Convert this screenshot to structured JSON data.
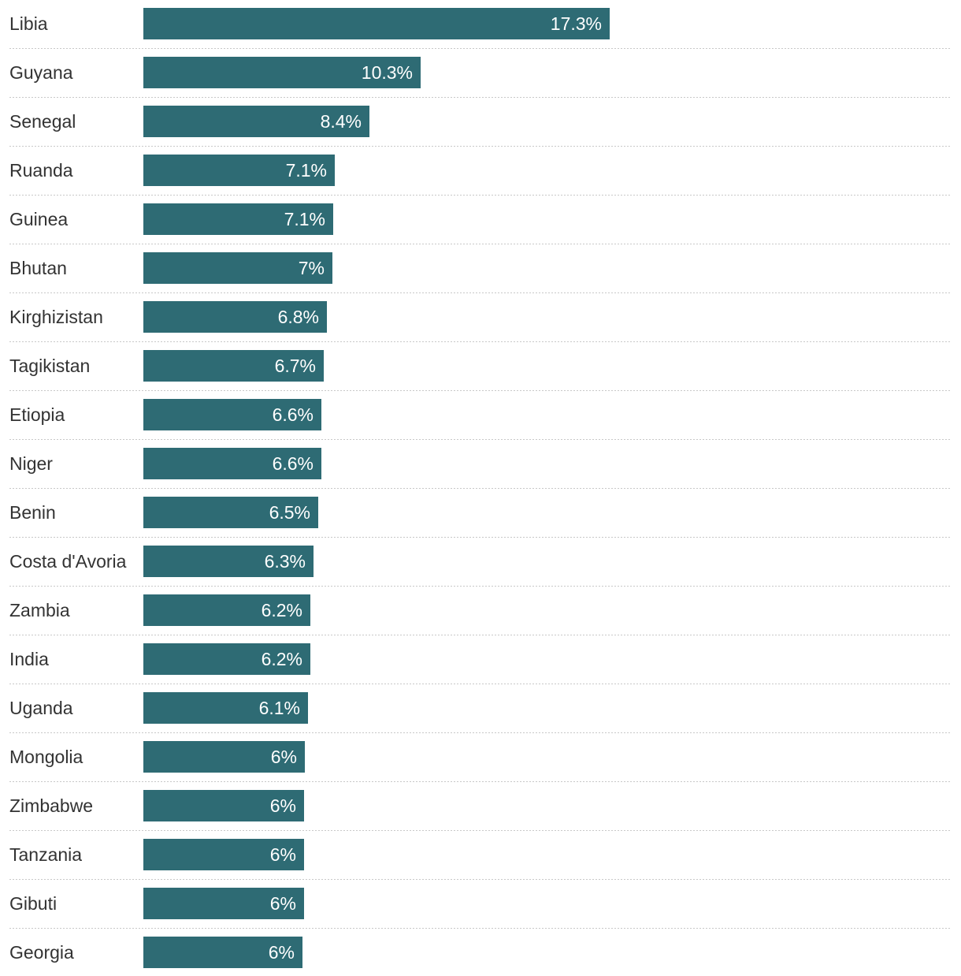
{
  "colors": {
    "bar": "#2e6b74",
    "label_text": "#333333",
    "value_text": "#ffffff",
    "separator": "#c8c8c8"
  },
  "chart_data": {
    "type": "bar",
    "orientation": "horizontal",
    "categories": [
      "Libia",
      "Guyana",
      "Senegal",
      "Ruanda",
      "Guinea",
      "Bhutan",
      "Kirghizistan",
      "Tagikistan",
      "Etiopia",
      "Niger",
      "Benin",
      "Costa d'Avoria",
      "Zambia",
      "India",
      "Uganda",
      "Mongolia",
      "Zimbabwe",
      "Tanzania",
      "Gibuti",
      "Georgia"
    ],
    "values": [
      17.3,
      10.3,
      8.4,
      7.1,
      7.05,
      7.0,
      6.8,
      6.7,
      6.6,
      6.6,
      6.5,
      6.3,
      6.2,
      6.2,
      6.1,
      6.0,
      5.95,
      5.95,
      5.95,
      5.9
    ],
    "value_labels": [
      "17.3%",
      "10.3%",
      "8.4%",
      "7.1%",
      "7.1%",
      "7%",
      "6.8%",
      "6.7%",
      "6.6%",
      "6.6%",
      "6.5%",
      "6.3%",
      "6.2%",
      "6.2%",
      "6.1%",
      "6%",
      "6%",
      "6%",
      "6%",
      "6%"
    ],
    "unit": "%",
    "xlim": [
      0,
      17.3
    ],
    "grid": false,
    "legend": "none"
  }
}
